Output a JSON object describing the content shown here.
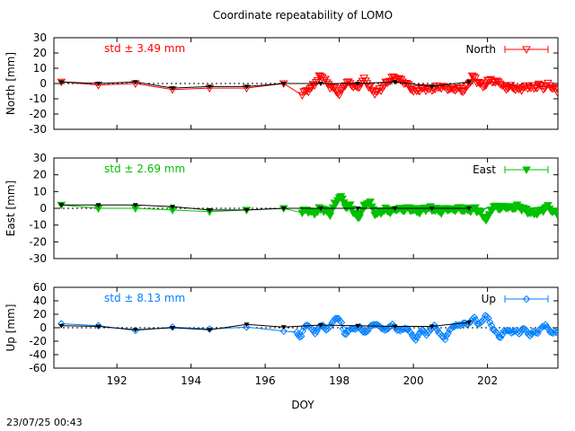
{
  "title": "Coordinate repeatability of LOMO",
  "timestamp": "23/07/25 00:43",
  "xlabel": "DOY",
  "xlim": [
    190.3,
    203.9
  ],
  "xticks": [
    192,
    194,
    196,
    198,
    200,
    202
  ],
  "colors": {
    "North": "#ff0000",
    "East": "#00c000",
    "Up": "#0080ff",
    "solution": "#000000",
    "zero_line": "#000000"
  },
  "chart_data": [
    {
      "type": "line",
      "panel": "north",
      "ylabel": "North [mm]",
      "ylim": [
        -30,
        30
      ],
      "yticks": [
        -30,
        -20,
        -10,
        0,
        10,
        20,
        30
      ],
      "std_label": "std ± 3.49 mm",
      "legend": "North",
      "legend_placement": "top-right",
      "marker": "triangle-down-open",
      "daily": {
        "x": [
          190.5,
          191.5,
          192.5,
          193.5,
          194.5,
          195.5,
          196.5
        ],
        "y": [
          1,
          -1,
          0,
          -4,
          -3,
          -3,
          0
        ]
      },
      "dense_series": {
        "x_start": 197.0,
        "x_end": 203.9,
        "step": 0.0417,
        "anchors": [
          [
            197.0,
            -7
          ],
          [
            197.1,
            -5
          ],
          [
            197.25,
            -3
          ],
          [
            197.4,
            2
          ],
          [
            197.5,
            5
          ],
          [
            197.6,
            3
          ],
          [
            197.7,
            -1
          ],
          [
            197.85,
            -3
          ],
          [
            198.0,
            -7
          ],
          [
            198.1,
            -3
          ],
          [
            198.2,
            1
          ],
          [
            198.35,
            -1
          ],
          [
            198.5,
            -3
          ],
          [
            198.6,
            1
          ],
          [
            198.7,
            3
          ],
          [
            198.8,
            -2
          ],
          [
            198.9,
            -5
          ],
          [
            199.0,
            -6
          ],
          [
            199.15,
            -3
          ],
          [
            199.3,
            1
          ],
          [
            199.45,
            4
          ],
          [
            199.6,
            3
          ],
          [
            199.75,
            1
          ],
          [
            199.9,
            -2
          ],
          [
            200.0,
            -5
          ],
          [
            200.15,
            -4
          ],
          [
            200.3,
            -3
          ],
          [
            200.45,
            -4
          ],
          [
            200.6,
            -3
          ],
          [
            200.75,
            -2
          ],
          [
            200.9,
            -3
          ],
          [
            201.05,
            -4
          ],
          [
            201.2,
            -3
          ],
          [
            201.35,
            -5
          ],
          [
            201.5,
            0
          ],
          [
            201.6,
            5
          ],
          [
            201.7,
            2
          ],
          [
            201.8,
            0
          ],
          [
            201.9,
            -2
          ],
          [
            202.0,
            1
          ],
          [
            202.1,
            3
          ],
          [
            202.2,
            0
          ],
          [
            202.3,
            2
          ],
          [
            202.4,
            -2
          ],
          [
            202.5,
            -3
          ],
          [
            202.65,
            -2
          ],
          [
            202.8,
            -4
          ],
          [
            202.95,
            -3
          ],
          [
            203.1,
            -2
          ],
          [
            203.25,
            -3
          ],
          [
            203.4,
            -1
          ],
          [
            203.55,
            -3
          ],
          [
            203.65,
            0
          ],
          [
            203.75,
            -3
          ],
          [
            203.9,
            -5
          ]
        ]
      },
      "solution": {
        "x": [
          190.5,
          191.5,
          192.5,
          193.5,
          194.5,
          195.5,
          196.5,
          197.5,
          198.5,
          199.5,
          200.5,
          201.5
        ],
        "y": [
          1,
          0,
          1,
          -3,
          -2,
          -2,
          0,
          0,
          0,
          1,
          -2,
          1
        ]
      }
    },
    {
      "type": "line",
      "panel": "east",
      "ylabel": "East [mm]",
      "ylim": [
        -30,
        30
      ],
      "yticks": [
        -30,
        -20,
        -10,
        0,
        10,
        20,
        30
      ],
      "std_label": "std ± 2.69 mm",
      "legend": "East",
      "legend_placement": "top-right",
      "marker": "triangle-down-filled",
      "daily": {
        "x": [
          190.5,
          191.5,
          192.5,
          193.5,
          194.5,
          195.5,
          196.5
        ],
        "y": [
          2,
          0,
          0,
          -1,
          -2,
          -1,
          0
        ]
      },
      "dense_series": {
        "x_start": 197.0,
        "x_end": 203.9,
        "step": 0.0417,
        "anchors": [
          [
            197.0,
            -2
          ],
          [
            197.15,
            -1
          ],
          [
            197.3,
            -3
          ],
          [
            197.45,
            -1
          ],
          [
            197.55,
            0
          ],
          [
            197.65,
            -2
          ],
          [
            197.75,
            -3
          ],
          [
            197.9,
            3
          ],
          [
            198.0,
            7
          ],
          [
            198.1,
            5
          ],
          [
            198.2,
            0
          ],
          [
            198.3,
            2
          ],
          [
            198.4,
            -3
          ],
          [
            198.5,
            -6
          ],
          [
            198.6,
            -2
          ],
          [
            198.7,
            2
          ],
          [
            198.8,
            4
          ],
          [
            198.9,
            0
          ],
          [
            199.0,
            -4
          ],
          [
            199.1,
            -2
          ],
          [
            199.25,
            -1
          ],
          [
            199.4,
            -2
          ],
          [
            199.55,
            0
          ],
          [
            199.7,
            -1
          ],
          [
            199.85,
            0
          ],
          [
            200.0,
            -1
          ],
          [
            200.15,
            -2
          ],
          [
            200.3,
            0
          ],
          [
            200.45,
            0
          ],
          [
            200.6,
            -1
          ],
          [
            200.75,
            -2
          ],
          [
            200.9,
            0
          ],
          [
            201.05,
            -1
          ],
          [
            201.2,
            0
          ],
          [
            201.35,
            -1
          ],
          [
            201.5,
            -1
          ],
          [
            201.65,
            0
          ],
          [
            201.8,
            -2
          ],
          [
            201.9,
            -5
          ],
          [
            202.0,
            -7
          ],
          [
            202.1,
            0
          ],
          [
            202.2,
            1
          ],
          [
            202.35,
            0
          ],
          [
            202.5,
            1
          ],
          [
            202.65,
            0
          ],
          [
            202.8,
            1
          ],
          [
            202.95,
            0
          ],
          [
            203.1,
            -2
          ],
          [
            203.25,
            -3
          ],
          [
            203.4,
            -2
          ],
          [
            203.55,
            0
          ],
          [
            203.65,
            1
          ],
          [
            203.75,
            -2
          ],
          [
            203.9,
            -3
          ]
        ]
      },
      "solution": {
        "x": [
          190.5,
          191.5,
          192.5,
          193.5,
          194.5,
          195.5,
          196.5,
          197.5,
          198.5,
          199.5,
          200.5,
          201.5
        ],
        "y": [
          2,
          2,
          2,
          1,
          -1,
          -1,
          0,
          0,
          0,
          0,
          0,
          0
        ]
      }
    },
    {
      "type": "line",
      "panel": "up",
      "ylabel": "Up [mm]",
      "ylim": [
        -60,
        60
      ],
      "yticks": [
        -60,
        -40,
        -20,
        0,
        20,
        40,
        60
      ],
      "std_label": "std ± 8.13 mm",
      "legend": "Up",
      "legend_placement": "top-right",
      "marker": "diamond-open",
      "daily": {
        "x": [
          190.5,
          191.5,
          192.5,
          193.5,
          194.5,
          195.5,
          196.5
        ],
        "y": [
          6,
          3,
          -4,
          1,
          -2,
          1,
          -5
        ]
      },
      "dense_series": {
        "x_start": 196.85,
        "x_end": 203.9,
        "step": 0.0417,
        "anchors": [
          [
            196.85,
            -8
          ],
          [
            196.95,
            -15
          ],
          [
            197.05,
            0
          ],
          [
            197.15,
            5
          ],
          [
            197.25,
            -2
          ],
          [
            197.35,
            -8
          ],
          [
            197.45,
            0
          ],
          [
            197.55,
            5
          ],
          [
            197.65,
            -5
          ],
          [
            197.75,
            3
          ],
          [
            197.85,
            10
          ],
          [
            197.95,
            16
          ],
          [
            198.05,
            8
          ],
          [
            198.15,
            -10
          ],
          [
            198.25,
            -5
          ],
          [
            198.35,
            0
          ],
          [
            198.45,
            -3
          ],
          [
            198.55,
            3
          ],
          [
            198.65,
            -8
          ],
          [
            198.75,
            -5
          ],
          [
            198.85,
            2
          ],
          [
            198.95,
            6
          ],
          [
            199.05,
            3
          ],
          [
            199.15,
            0
          ],
          [
            199.25,
            -5
          ],
          [
            199.35,
            2
          ],
          [
            199.45,
            4
          ],
          [
            199.55,
            -2
          ],
          [
            199.65,
            -5
          ],
          [
            199.75,
            0
          ],
          [
            199.85,
            -3
          ],
          [
            199.95,
            -8
          ],
          [
            200.05,
            -20
          ],
          [
            200.15,
            -8
          ],
          [
            200.25,
            -3
          ],
          [
            200.35,
            -10
          ],
          [
            200.45,
            -5
          ],
          [
            200.55,
            5
          ],
          [
            200.65,
            -5
          ],
          [
            200.75,
            -10
          ],
          [
            200.85,
            -18
          ],
          [
            200.95,
            -5
          ],
          [
            201.05,
            0
          ],
          [
            201.15,
            5
          ],
          [
            201.25,
            2
          ],
          [
            201.35,
            8
          ],
          [
            201.45,
            4
          ],
          [
            201.55,
            10
          ],
          [
            201.65,
            15
          ],
          [
            201.75,
            5
          ],
          [
            201.85,
            8
          ],
          [
            201.95,
            20
          ],
          [
            202.05,
            10
          ],
          [
            202.15,
            -2
          ],
          [
            202.25,
            -8
          ],
          [
            202.35,
            -15
          ],
          [
            202.45,
            -5
          ],
          [
            202.55,
            -3
          ],
          [
            202.65,
            -8
          ],
          [
            202.75,
            -3
          ],
          [
            202.85,
            -10
          ],
          [
            202.95,
            0
          ],
          [
            203.05,
            -5
          ],
          [
            203.15,
            -12
          ],
          [
            203.25,
            -5
          ],
          [
            203.35,
            -8
          ],
          [
            203.45,
            0
          ],
          [
            203.55,
            5
          ],
          [
            203.65,
            -3
          ],
          [
            203.75,
            -8
          ],
          [
            203.9,
            -6
          ]
        ]
      },
      "solution": {
        "x": [
          190.5,
          191.5,
          192.5,
          193.5,
          194.5,
          195.5,
          196.5,
          197.5,
          198.5,
          199.5,
          200.5,
          201.5
        ],
        "y": [
          3,
          2,
          -3,
          0,
          -3,
          5,
          1,
          4,
          3,
          2,
          2,
          8
        ]
      }
    }
  ]
}
